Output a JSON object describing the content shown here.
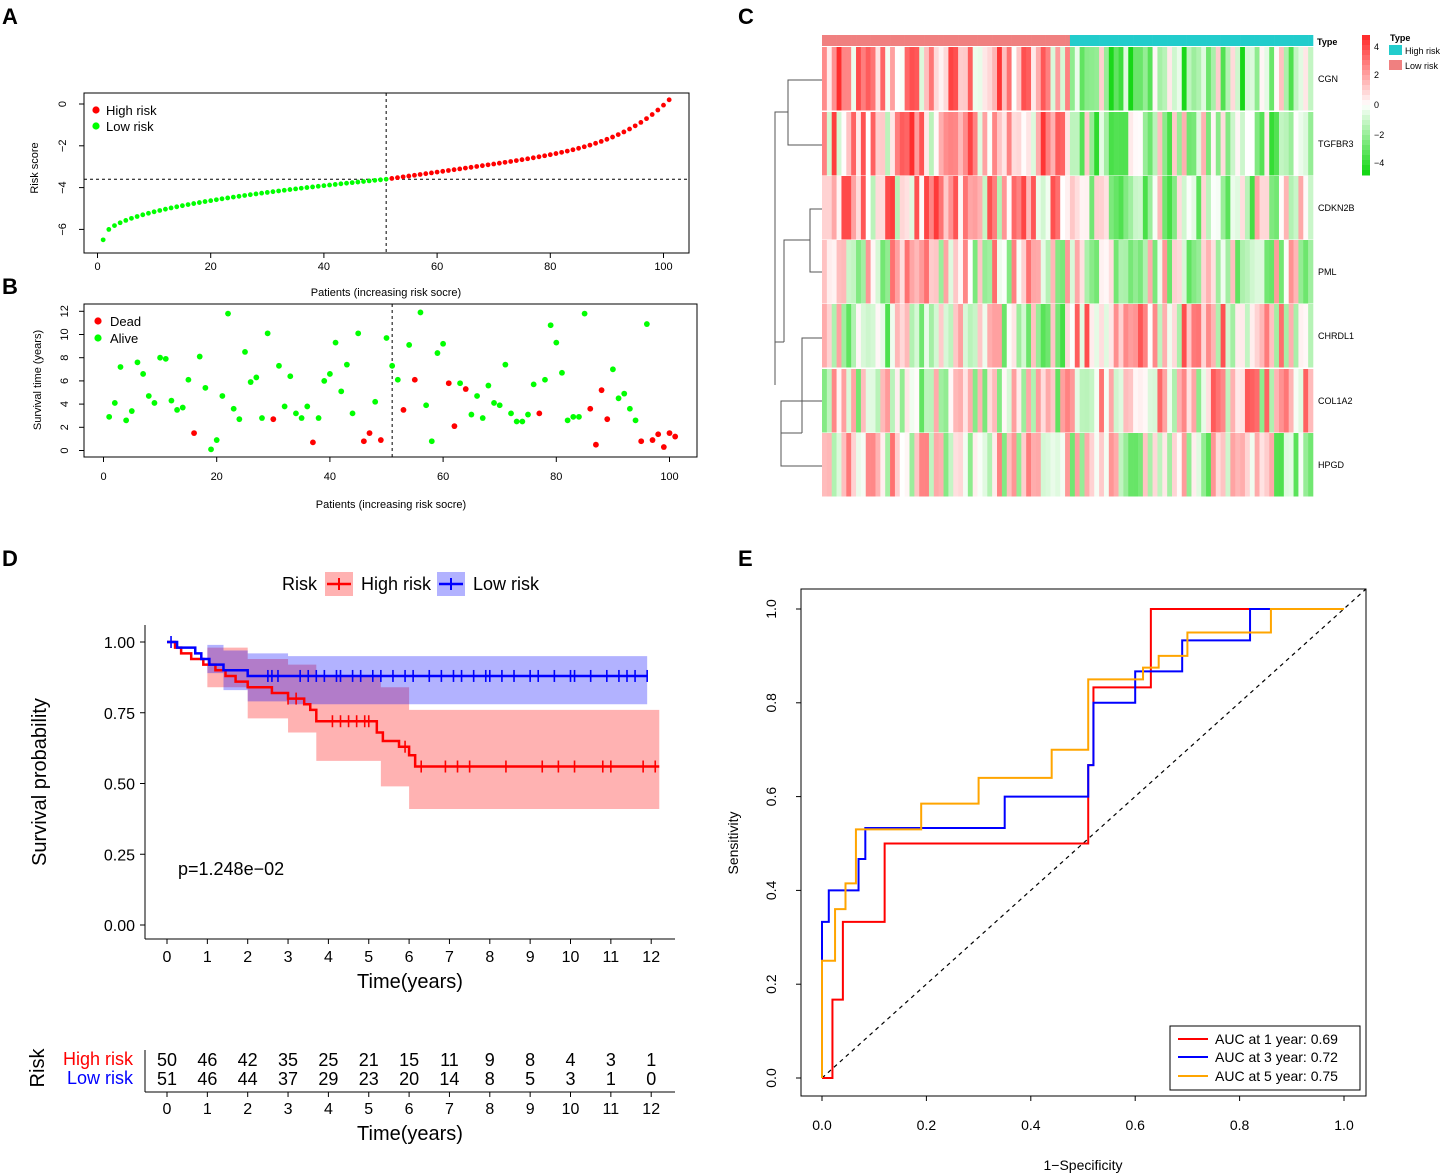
{
  "panels": {
    "A": "A",
    "B": "B",
    "C": "C",
    "D": "D",
    "E": "E"
  },
  "colors": {
    "high": "#ff0000",
    "low": "#00ff00",
    "heatHigh": "#ff0000",
    "heatLow": "#00dd00",
    "kmHigh": "#ff0000",
    "kmLow": "#0000ff",
    "typeHigh": "#22cccc",
    "typeLow": "#f08080",
    "roc1": "#ff0000",
    "roc3": "#0000ff",
    "roc5": "#ffa500"
  },
  "chart_data": [
    {
      "id": "A",
      "type": "scatter",
      "xlabel": "Patients (increasing risk socre)",
      "ylabel": "Risk score",
      "xlim": [
        0,
        101
      ],
      "ylim": [
        -6.6,
        0.3
      ],
      "xticks": [
        "0",
        "20",
        "40",
        "60",
        "80",
        "100"
      ],
      "yticks": [
        "0",
        "−2",
        "−4",
        "−6"
      ],
      "legend": [
        "High risk",
        "Low risk"
      ],
      "cutoff_index": 51,
      "cutoff_value": -3.6,
      "n_low": 51,
      "n_high": 50,
      "values_range": {
        "min": -6.5,
        "max": 0.2
      }
    },
    {
      "id": "B",
      "type": "scatter",
      "xlabel": "Patients (increasing risk socre)",
      "ylabel": "Survival time (years)",
      "xlim": [
        0,
        101
      ],
      "ylim": [
        0,
        12
      ],
      "xticks": [
        "0",
        "20",
        "40",
        "60",
        "80",
        "100"
      ],
      "yticks": [
        "0",
        "2",
        "4",
        "6",
        "8",
        "10",
        "12"
      ],
      "legend": [
        "Dead",
        "Alive"
      ],
      "cutoff_index": 51,
      "points": [
        [
          1,
          2.9,
          0
        ],
        [
          2,
          4.1,
          0
        ],
        [
          3,
          7.2,
          0
        ],
        [
          4,
          2.6,
          0
        ],
        [
          5,
          3.4,
          0
        ],
        [
          6,
          7.6,
          0
        ],
        [
          7,
          6.6,
          0
        ],
        [
          8,
          4.7,
          0
        ],
        [
          9,
          4.1,
          0
        ],
        [
          10,
          8.0,
          0
        ],
        [
          11,
          7.9,
          0
        ],
        [
          12,
          4.3,
          0
        ],
        [
          13,
          3.5,
          0
        ],
        [
          14,
          3.7,
          0
        ],
        [
          15,
          6.1,
          0
        ],
        [
          16,
          1.5,
          1
        ],
        [
          17,
          8.1,
          0
        ],
        [
          18,
          5.4,
          0
        ],
        [
          19,
          0.1,
          0
        ],
        [
          20,
          0.9,
          0
        ],
        [
          21,
          4.7,
          0
        ],
        [
          22,
          11.8,
          0
        ],
        [
          23,
          3.6,
          0
        ],
        [
          24,
          2.7,
          0
        ],
        [
          25,
          8.5,
          0
        ],
        [
          26,
          5.9,
          0
        ],
        [
          27,
          6.3,
          0
        ],
        [
          28,
          2.8,
          0
        ],
        [
          29,
          10.1,
          0
        ],
        [
          30,
          2.7,
          1
        ],
        [
          31,
          7.3,
          0
        ],
        [
          32,
          3.8,
          0
        ],
        [
          33,
          6.4,
          0
        ],
        [
          34,
          3.2,
          0
        ],
        [
          35,
          2.8,
          0
        ],
        [
          36,
          3.8,
          0
        ],
        [
          37,
          0.7,
          1
        ],
        [
          38,
          2.8,
          0
        ],
        [
          39,
          6.0,
          0
        ],
        [
          40,
          6.6,
          0
        ],
        [
          41,
          9.3,
          0
        ],
        [
          42,
          5.1,
          0
        ],
        [
          43,
          7.4,
          0
        ],
        [
          44,
          3.2,
          0
        ],
        [
          45,
          10.1,
          0
        ],
        [
          46,
          0.8,
          1
        ],
        [
          47,
          1.5,
          1
        ],
        [
          48,
          4.2,
          0
        ],
        [
          49,
          0.9,
          1
        ],
        [
          50,
          9.7,
          0
        ],
        [
          51,
          7.3,
          0
        ],
        [
          52,
          6.1,
          0
        ],
        [
          53,
          3.5,
          1
        ],
        [
          54,
          9.1,
          0
        ],
        [
          55,
          6.1,
          1
        ],
        [
          56,
          11.9,
          0
        ],
        [
          57,
          3.9,
          0
        ],
        [
          58,
          0.8,
          0
        ],
        [
          59,
          8.4,
          0
        ],
        [
          60,
          9.2,
          0
        ],
        [
          61,
          5.8,
          1
        ],
        [
          62,
          2.1,
          1
        ],
        [
          63,
          5.8,
          0
        ],
        [
          64,
          5.3,
          1
        ],
        [
          65,
          3.1,
          0
        ],
        [
          66,
          4.7,
          0
        ],
        [
          67,
          2.8,
          0
        ],
        [
          68,
          5.6,
          0
        ],
        [
          69,
          4.1,
          0
        ],
        [
          70,
          3.9,
          0
        ],
        [
          71,
          7.4,
          0
        ],
        [
          72,
          3.2,
          0
        ],
        [
          73,
          2.5,
          0
        ],
        [
          74,
          2.5,
          0
        ],
        [
          75,
          3.1,
          0
        ],
        [
          76,
          5.7,
          0
        ],
        [
          77,
          3.2,
          1
        ],
        [
          78,
          6.1,
          0
        ],
        [
          79,
          10.8,
          0
        ],
        [
          80,
          9.3,
          0
        ],
        [
          81,
          6.7,
          0
        ],
        [
          82,
          2.6,
          0
        ],
        [
          83,
          2.9,
          0
        ],
        [
          84,
          2.9,
          0
        ],
        [
          85,
          11.8,
          0
        ],
        [
          86,
          3.6,
          1
        ],
        [
          87,
          0.5,
          1
        ],
        [
          88,
          5.2,
          1
        ],
        [
          89,
          2.7,
          1
        ],
        [
          90,
          7.0,
          0
        ],
        [
          91,
          4.5,
          0
        ],
        [
          92,
          4.9,
          0
        ],
        [
          93,
          3.6,
          0
        ],
        [
          94,
          2.6,
          0
        ],
        [
          95,
          0.8,
          1
        ],
        [
          96,
          10.9,
          0
        ],
        [
          97,
          0.9,
          1
        ],
        [
          98,
          1.4,
          1
        ],
        [
          99,
          0.3,
          1
        ],
        [
          100,
          1.5,
          1
        ],
        [
          101,
          1.2,
          1
        ]
      ]
    },
    {
      "id": "C",
      "type": "heatmap",
      "genes": [
        "CGN",
        "TGFBR3",
        "CDKN2B",
        "PML",
        "CHRDL1",
        "COL1A2",
        "HPGD"
      ],
      "type_label": "Type",
      "groups": [
        "High risk",
        "Low risk"
      ],
      "n_low": 51,
      "n_high": 50,
      "scale_ticks": [
        "4",
        "2",
        "0",
        "−2",
        "−4"
      ]
    },
    {
      "id": "D",
      "type": "line",
      "title_risk": "Risk",
      "legend": [
        "High risk",
        "Low risk"
      ],
      "ylabel": "Survival probability",
      "xlabel": "Time(years)",
      "xlim": [
        0,
        12.3
      ],
      "ylim": [
        0,
        1
      ],
      "xticks": [
        "0",
        "1",
        "2",
        "3",
        "4",
        "5",
        "6",
        "7",
        "8",
        "9",
        "10",
        "11",
        "12"
      ],
      "yticks": [
        "0.00",
        "0.25",
        "0.50",
        "0.75",
        "1.00"
      ],
      "pvalue": "p=1.248e−02",
      "series": [
        {
          "name": "High risk",
          "steps": [
            [
              0,
              1.0
            ],
            [
              0.2,
              0.98
            ],
            [
              0.35,
              0.96
            ],
            [
              0.6,
              0.94
            ],
            [
              0.9,
              0.92
            ],
            [
              1.2,
              0.9
            ],
            [
              1.45,
              0.88
            ],
            [
              1.7,
              0.86
            ],
            [
              2.0,
              0.84
            ],
            [
              2.6,
              0.82
            ],
            [
              3.0,
              0.8
            ],
            [
              3.4,
              0.78
            ],
            [
              3.55,
              0.76
            ],
            [
              3.7,
              0.72
            ],
            [
              5.2,
              0.68
            ],
            [
              5.35,
              0.65
            ],
            [
              5.75,
              0.63
            ],
            [
              6.0,
              0.6
            ],
            [
              6.15,
              0.56
            ],
            [
              12.2,
              0.56
            ]
          ],
          "lower": [
            [
              0,
              1.0
            ],
            [
              1,
              0.84
            ],
            [
              2,
              0.73
            ],
            [
              3,
              0.68
            ],
            [
              3.7,
              0.58
            ],
            [
              5.3,
              0.49
            ],
            [
              6.0,
              0.41
            ],
            [
              12.2,
              0.41
            ]
          ],
          "upper": [
            [
              0,
              1.0
            ],
            [
              1,
              0.98
            ],
            [
              2,
              0.94
            ],
            [
              3,
              0.92
            ],
            [
              3.7,
              0.88
            ],
            [
              5.3,
              0.84
            ],
            [
              6.0,
              0.76
            ],
            [
              12.2,
              0.76
            ]
          ],
          "censor": [
            3.0,
            3.2,
            4.1,
            4.3,
            4.5,
            4.7,
            4.9,
            5.0,
            5.9,
            6.3,
            6.9,
            7.2,
            7.5,
            8.4,
            9.3,
            9.7,
            10.1,
            10.8,
            11.0,
            11.8,
            12.1
          ]
        },
        {
          "name": "Low risk",
          "steps": [
            [
              0,
              1.0
            ],
            [
              0.25,
              0.98
            ],
            [
              0.7,
              0.96
            ],
            [
              0.85,
              0.94
            ],
            [
              1.05,
              0.92
            ],
            [
              1.4,
              0.9
            ],
            [
              2.0,
              0.88
            ],
            [
              11.9,
              0.88
            ]
          ],
          "lower": [
            [
              0,
              1.0
            ],
            [
              1,
              0.89
            ],
            [
              1.4,
              0.83
            ],
            [
              2,
              0.79
            ],
            [
              3,
              0.78
            ],
            [
              6,
              0.78
            ],
            [
              11.9,
              0.78
            ]
          ],
          "upper": [
            [
              0,
              1.0
            ],
            [
              1,
              0.99
            ],
            [
              1.4,
              0.97
            ],
            [
              2,
              0.96
            ],
            [
              3,
              0.95
            ],
            [
              11.9,
              0.95
            ]
          ],
          "censor": [
            0.1,
            2.5,
            2.6,
            2.75,
            3.3,
            3.5,
            3.7,
            3.9,
            4.2,
            4.3,
            4.6,
            4.8,
            5.1,
            5.3,
            5.6,
            5.9,
            6.1,
            6.5,
            6.8,
            7.1,
            7.3,
            7.6,
            7.9,
            8.0,
            8.3,
            8.6,
            9.0,
            9.2,
            9.6,
            10.0,
            10.1,
            10.5,
            10.9,
            11.2,
            11.4,
            11.6,
            11.9
          ]
        }
      ]
    },
    {
      "id": "D-table",
      "type": "table",
      "ylabel": "Risk",
      "xlabel": "Time(years)",
      "xticks": [
        "0",
        "1",
        "2",
        "3",
        "4",
        "5",
        "6",
        "7",
        "8",
        "9",
        "10",
        "11",
        "12"
      ],
      "rows": [
        {
          "name": "High risk",
          "values": [
            "50",
            "46",
            "42",
            "35",
            "25",
            "21",
            "15",
            "11",
            "9",
            "8",
            "4",
            "3",
            "1"
          ]
        },
        {
          "name": "Low risk",
          "values": [
            "51",
            "46",
            "44",
            "37",
            "29",
            "23",
            "20",
            "14",
            "8",
            "5",
            "3",
            "1",
            "0"
          ]
        }
      ]
    },
    {
      "id": "E",
      "type": "line",
      "xlabel": "1−Specificity",
      "ylabel": "Sensitivity",
      "xlim": [
        0,
        1
      ],
      "ylim": [
        0,
        1
      ],
      "xticks": [
        "0.0",
        "0.2",
        "0.4",
        "0.6",
        "0.8",
        "1.0"
      ],
      "yticks": [
        "0.0",
        "0.2",
        "0.4",
        "0.6",
        "0.8",
        "1.0"
      ],
      "series": [
        {
          "name": "AUC at 1 year: 0.69",
          "points": [
            [
              0,
              0
            ],
            [
              0.02,
              0
            ],
            [
              0.02,
              0.167
            ],
            [
              0.04,
              0.167
            ],
            [
              0.04,
              0.333
            ],
            [
              0.12,
              0.333
            ],
            [
              0.12,
              0.5
            ],
            [
              0.51,
              0.5
            ],
            [
              0.51,
              0.667
            ],
            [
              0.52,
              0.667
            ],
            [
              0.52,
              0.833
            ],
            [
              0.63,
              0.833
            ],
            [
              0.63,
              1.0
            ],
            [
              1.0,
              1.0
            ]
          ]
        },
        {
          "name": "AUC at 3 year: 0.72",
          "points": [
            [
              0,
              0
            ],
            [
              0,
              0.333
            ],
            [
              0.013,
              0.333
            ],
            [
              0.013,
              0.4
            ],
            [
              0.07,
              0.4
            ],
            [
              0.07,
              0.467
            ],
            [
              0.083,
              0.467
            ],
            [
              0.083,
              0.533
            ],
            [
              0.35,
              0.533
            ],
            [
              0.35,
              0.6
            ],
            [
              0.51,
              0.6
            ],
            [
              0.51,
              0.667
            ],
            [
              0.52,
              0.667
            ],
            [
              0.52,
              0.8
            ],
            [
              0.6,
              0.8
            ],
            [
              0.6,
              0.867
            ],
            [
              0.69,
              0.867
            ],
            [
              0.69,
              0.933
            ],
            [
              0.82,
              0.933
            ],
            [
              0.82,
              1.0
            ],
            [
              1.0,
              1.0
            ]
          ]
        },
        {
          "name": "AUC at 5 year: 0.75",
          "points": [
            [
              0,
              0
            ],
            [
              0,
              0.25
            ],
            [
              0.025,
              0.25
            ],
            [
              0.025,
              0.36
            ],
            [
              0.045,
              0.36
            ],
            [
              0.045,
              0.415
            ],
            [
              0.065,
              0.415
            ],
            [
              0.065,
              0.53
            ],
            [
              0.19,
              0.53
            ],
            [
              0.19,
              0.585
            ],
            [
              0.3,
              0.585
            ],
            [
              0.3,
              0.64
            ],
            [
              0.44,
              0.64
            ],
            [
              0.44,
              0.7
            ],
            [
              0.51,
              0.7
            ],
            [
              0.51,
              0.85
            ],
            [
              0.615,
              0.85
            ],
            [
              0.615,
              0.875
            ],
            [
              0.645,
              0.875
            ],
            [
              0.645,
              0.9
            ],
            [
              0.7,
              0.9
            ],
            [
              0.7,
              0.95
            ],
            [
              0.86,
              0.95
            ],
            [
              0.86,
              1.0
            ],
            [
              1.0,
              1.0
            ]
          ]
        }
      ]
    }
  ]
}
